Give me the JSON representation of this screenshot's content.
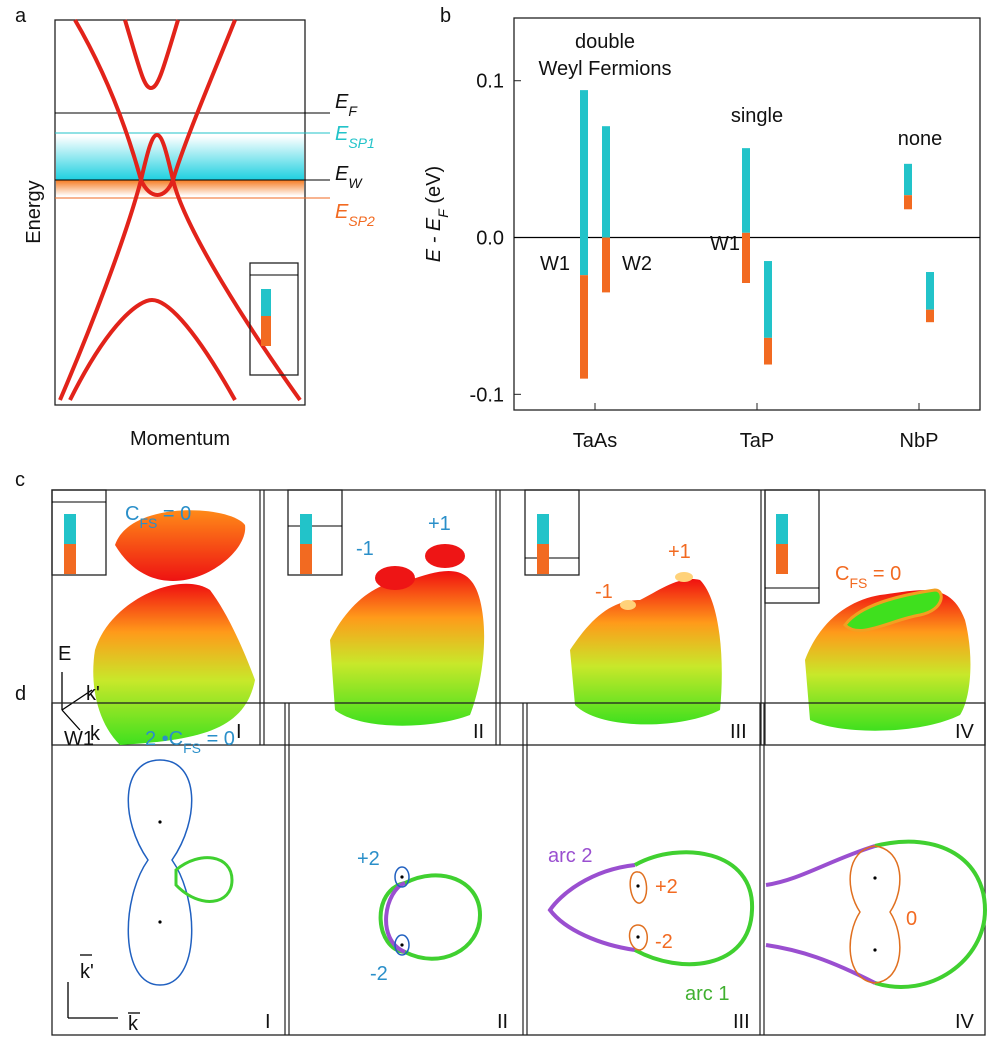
{
  "panel_a": {
    "label": "a",
    "ylabel": "Energy",
    "xlabel": "Momentum",
    "levels": [
      {
        "main": "E",
        "sub": "F"
      },
      {
        "main": "E",
        "sub": "SP1"
      },
      {
        "main": "E",
        "sub": "W"
      },
      {
        "main": "E",
        "sub": "SP2"
      }
    ]
  },
  "chart_data": {
    "type": "range_bar",
    "panel_label": "b",
    "categories": [
      "TaAs",
      "TaP",
      "NbP"
    ],
    "ylabel": {
      "main": "E - E",
      "sub": "F",
      "unit": " (eV)"
    },
    "ylim": [
      -0.11,
      0.14
    ],
    "yticks": [
      -0.1,
      {
        "value": 0,
        "label": "0.0"
      },
      0.1
    ],
    "upper_color": "#22c3c9",
    "lower_color": "#f26a21",
    "series": [
      {
        "top": [
          0.094,
          0.057,
          0.047
        ],
        "mid": [
          -0.024,
          0.003,
          0.027
        ],
        "bottom": [
          -0.09,
          -0.029,
          0.018
        ]
      },
      {
        "top": [
          0.071,
          -0.015,
          -0.022
        ],
        "mid": [
          0,
          -0.064,
          -0.046
        ],
        "bottom": [
          -0.035,
          -0.081,
          -0.054
        ]
      }
    ],
    "annotations": [
      "double",
      "Weyl Fermions",
      "single",
      "none",
      "W1",
      "W2",
      "W1"
    ]
  },
  "panel_c": {
    "label": "c",
    "cfs": [
      {
        "main": "C",
        "sub": "FS",
        "eq": " = 0"
      },
      {
        "main": "C",
        "sub": "FS",
        "eq": " = 0"
      }
    ],
    "chern": [
      "-1",
      "+1",
      "-1",
      "+1"
    ],
    "axes": [
      "E",
      "k'",
      "k"
    ],
    "numerals": [
      "I",
      "II",
      "III",
      "IV"
    ]
  },
  "panel_d": {
    "label": "d",
    "point": "W1",
    "cfs": {
      "pre": "2 •C",
      "sub": "FS",
      "eq": " = 0"
    },
    "chern": [
      "+2",
      "-2",
      "+2",
      "-2",
      "0"
    ],
    "arcs": [
      "arc 2",
      "arc 1"
    ],
    "axes": [
      "k'",
      "k"
    ],
    "numerals": [
      "I",
      "II",
      "III",
      "IV"
    ]
  }
}
